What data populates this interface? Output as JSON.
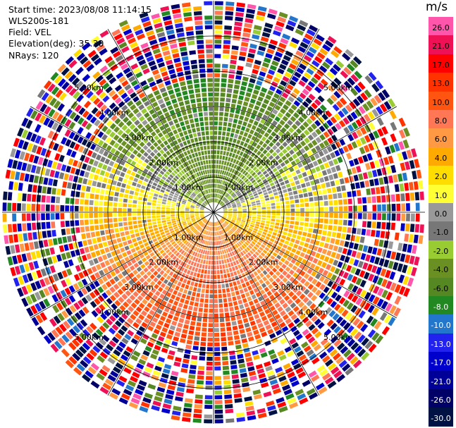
{
  "header": {
    "start_time": "Start time: 2023/08/08 11:14:15",
    "instrument": "WLS200s-181",
    "field": "Field: VEL",
    "elevation": "Elevation(deg): 35.30",
    "nrays": "NRays: 120"
  },
  "chart_data": {
    "type": "heatmap",
    "projection": "PPI polar",
    "field": "VEL",
    "units": "m/s",
    "n_rays": 120,
    "elevation_deg": 35.3,
    "max_range_km": 6.0,
    "range_ring_labels": [
      "1.00km",
      "2.00km",
      "3.00km",
      "4.00km",
      "5.00km"
    ],
    "colorbar": {
      "title": "m/s",
      "ticks": [
        "26.0",
        "21.0",
        "17.0",
        "13.0",
        "10.0",
        "8.0",
        "6.0",
        "4.0",
        "2.0",
        "1.0",
        "0.0",
        "-1.0",
        "-2.0",
        "-4.0",
        "-6.0",
        "-8.0",
        "-10.0",
        "-13.0",
        "-17.0",
        "-21.0",
        "-26.0",
        "-30.0"
      ],
      "colors": [
        "#ff55aa",
        "#ee1155",
        "#ff0000",
        "#ff3300",
        "#ff5511",
        "#ff7755",
        "#ff9944",
        "#ffaa00",
        "#ffdd00",
        "#ffff33",
        "#999999",
        "#777777",
        "#99cc33",
        "#6a8f23",
        "#558822",
        "#228822",
        "#2277cc",
        "#2222ee",
        "#0000cc",
        "#000099",
        "#000066",
        "#001144"
      ]
    },
    "scan_description": [
      {
        "sector": "north",
        "velocity_range": [
          -10,
          -2
        ]
      },
      {
        "sector": "south",
        "velocity_range": [
          4,
          17
        ]
      }
    ]
  }
}
